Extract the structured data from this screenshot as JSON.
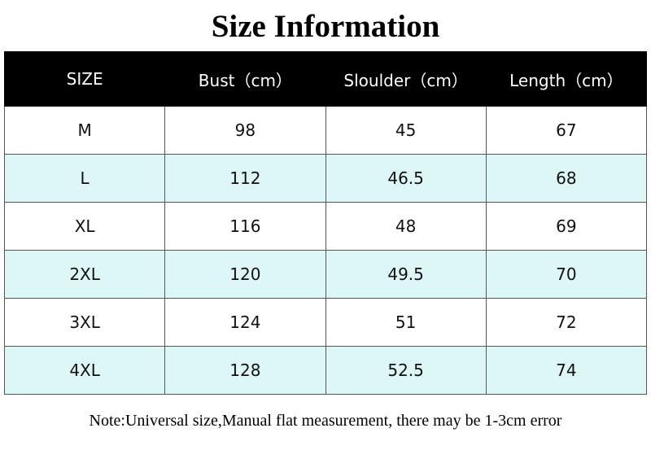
{
  "header": {
    "title": "Size Information"
  },
  "table": {
    "columns": [
      "SIZE",
      "Bust（cm）",
      "Sloulder（cm）",
      "Length（cm）"
    ],
    "rows": [
      [
        "M",
        98,
        45,
        67
      ],
      [
        "L",
        112,
        46.5,
        68
      ],
      [
        "XL",
        116,
        48,
        69
      ],
      [
        "2XL",
        120,
        49.5,
        70
      ],
      [
        "3XL",
        124,
        51,
        72
      ],
      [
        "4XL",
        128,
        52.5,
        74
      ]
    ]
  },
  "note": "Note:Universal size,Manual flat measurement, there may be 1-3cm error"
}
